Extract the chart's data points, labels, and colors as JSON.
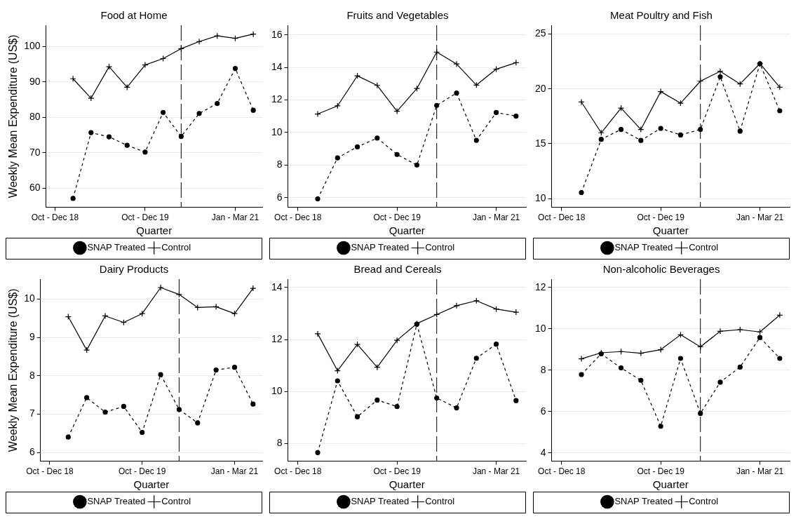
{
  "chart_data": [
    {
      "type": "line",
      "title": "Food at Home",
      "xlabel": "Quarter",
      "ylabel": "Weekly Mean Expenditure (US$)",
      "categories": [
        "Oct - Dec 18",
        null,
        null,
        null,
        null,
        "Oct - Dec 19",
        null,
        null,
        null,
        null,
        "Jan - Mar 21",
        null
      ],
      "ylim": [
        54.6,
        106
      ],
      "yticks": [
        60,
        70,
        80,
        90,
        100
      ],
      "grid": "y",
      "legend": "bottom",
      "series": [
        {
          "name": "SNAP Treated",
          "color": "#000000",
          "marker": "circle",
          "line_style": "dashed",
          "values": [
            null,
            57.1,
            75.7,
            74.5,
            72.1,
            70.2,
            81.4,
            74.6,
            81.1,
            83.9,
            93.8,
            82.0
          ]
        },
        {
          "name": "Control",
          "color": "#000000",
          "marker": "cross",
          "line_style": "solid",
          "values": [
            null,
            90.9,
            85.4,
            94.3,
            88.5,
            94.8,
            96.6,
            99.4,
            101.4,
            103.0,
            102.3,
            103.5
          ]
        }
      ]
    },
    {
      "type": "line",
      "title": "Fruits and Vegetables",
      "xlabel": "Quarter",
      "categories": [
        "Oct - Dec 18",
        null,
        null,
        null,
        null,
        "Oct - Dec 19",
        null,
        null,
        null,
        null,
        "Jan - Mar 21",
        null
      ],
      "ylim": [
        5.4,
        16.6
      ],
      "yticks": [
        6,
        8,
        10,
        12,
        14,
        16
      ],
      "grid": "y",
      "legend": "bottom",
      "series": [
        {
          "name": "SNAP Treated",
          "color": "#000000",
          "marker": "circle",
          "line_style": "dashed",
          "values": [
            null,
            5.92,
            8.44,
            9.12,
            9.66,
            8.65,
            8.0,
            11.67,
            12.43,
            9.52,
            11.23,
            11.01
          ]
        },
        {
          "name": "Control",
          "color": "#000000",
          "marker": "cross",
          "line_style": "solid",
          "values": [
            null,
            11.14,
            11.64,
            13.49,
            12.9,
            11.31,
            12.71,
            14.95,
            14.22,
            12.92,
            13.9,
            14.3
          ]
        }
      ]
    },
    {
      "type": "line",
      "title": "Meat Poultry and Fish",
      "xlabel": "Quarter",
      "categories": [
        "Oct - Dec 18",
        null,
        null,
        null,
        null,
        "Oct - Dec 19",
        null,
        null,
        null,
        null,
        "Jan - Mar 21",
        null
      ],
      "ylim": [
        9.2,
        25.8
      ],
      "yticks": [
        10,
        15,
        20,
        25
      ],
      "grid": "y",
      "legend": "bottom",
      "series": [
        {
          "name": "SNAP Treated",
          "color": "#000000",
          "marker": "circle",
          "line_style": "dashed",
          "values": [
            null,
            10.55,
            15.4,
            16.3,
            15.3,
            16.4,
            15.8,
            16.3,
            21.1,
            16.15,
            22.3,
            18.0
          ]
        },
        {
          "name": "Control",
          "color": "#000000",
          "marker": "cross",
          "line_style": "solid",
          "values": [
            null,
            18.8,
            16.0,
            18.25,
            16.3,
            19.75,
            18.7,
            20.7,
            21.6,
            20.45,
            22.3,
            20.15
          ]
        }
      ]
    },
    {
      "type": "line",
      "title": "Dairy Products",
      "xlabel": "Quarter",
      "ylabel": "Weekly Mean Expenditure (US$)",
      "categories": [
        "Oct - Dec 18",
        null,
        null,
        null,
        null,
        "Oct - Dec 19",
        null,
        null,
        null,
        null,
        "Jan - Mar 21",
        null
      ],
      "ylim": [
        5.77,
        10.52
      ],
      "yticks": [
        6,
        7,
        8,
        9,
        10
      ],
      "grid": "y",
      "legend": "bottom",
      "series": [
        {
          "name": "SNAP Treated",
          "color": "#000000",
          "marker": "circle",
          "line_style": "dashed",
          "values": [
            null,
            6.4,
            7.43,
            7.05,
            7.2,
            6.52,
            8.03,
            7.12,
            6.77,
            8.15,
            8.22,
            7.26
          ]
        },
        {
          "name": "Control",
          "color": "#000000",
          "marker": "cross",
          "line_style": "solid",
          "values": [
            null,
            9.54,
            8.67,
            9.56,
            9.39,
            9.62,
            10.3,
            10.12,
            9.78,
            9.8,
            9.62,
            10.28
          ]
        }
      ]
    },
    {
      "type": "line",
      "title": "Bread and Cereals",
      "xlabel": "Quarter",
      "categories": [
        "Oct - Dec 18",
        null,
        null,
        null,
        null,
        "Oct - Dec 19",
        null,
        null,
        null,
        null,
        "Jan - Mar 21",
        null
      ],
      "ylim": [
        7.32,
        14.32
      ],
      "yticks": [
        8,
        10,
        12,
        14
      ],
      "grid": "y",
      "legend": "bottom",
      "series": [
        {
          "name": "SNAP Treated",
          "color": "#000000",
          "marker": "circle",
          "line_style": "dashed",
          "values": [
            null,
            7.65,
            10.41,
            9.03,
            9.67,
            9.42,
            12.59,
            9.75,
            9.37,
            11.28,
            11.82,
            9.65
          ]
        },
        {
          "name": "Control",
          "color": "#000000",
          "marker": "cross",
          "line_style": "solid",
          "values": [
            null,
            12.22,
            10.8,
            11.81,
            10.93,
            11.97,
            12.61,
            12.96,
            13.3,
            13.49,
            13.17,
            13.05
          ]
        }
      ]
    },
    {
      "type": "line",
      "title": "Non-alcoholic Beverages",
      "xlabel": "Quarter",
      "categories": [
        "Oct - Dec 18",
        null,
        null,
        null,
        null,
        "Oct - Dec 19",
        null,
        null,
        null,
        null,
        "Jan - Mar 21",
        null
      ],
      "ylim": [
        3.6,
        12.4
      ],
      "yticks": [
        4,
        6,
        8,
        10,
        12
      ],
      "grid": "y",
      "legend": "bottom",
      "series": [
        {
          "name": "SNAP Treated",
          "color": "#000000",
          "marker": "circle",
          "line_style": "dashed",
          "values": [
            null,
            7.79,
            8.79,
            8.11,
            7.51,
            5.29,
            8.57,
            5.91,
            7.42,
            8.15,
            9.58,
            8.57
          ]
        },
        {
          "name": "Control",
          "color": "#000000",
          "marker": "cross",
          "line_style": "solid",
          "values": [
            null,
            8.55,
            8.84,
            8.9,
            8.82,
            8.99,
            9.71,
            9.13,
            9.88,
            9.96,
            9.85,
            10.66
          ]
        }
      ]
    }
  ]
}
